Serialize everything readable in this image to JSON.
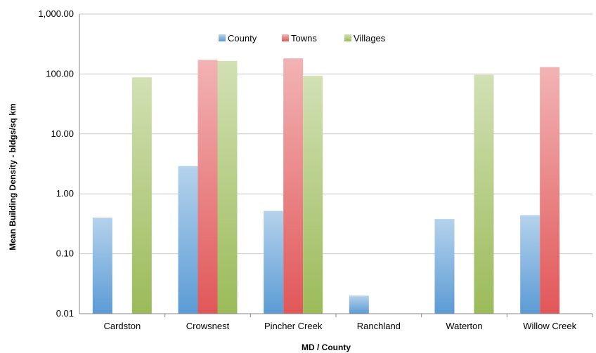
{
  "chart_data": {
    "type": "bar",
    "title": "",
    "xlabel": "MD / County",
    "ylabel": "Mean Building Density - bldgs/sq km",
    "yscale": "log",
    "ylim": [
      0.01,
      1000
    ],
    "yticks": [
      0.01,
      0.1,
      1,
      10,
      100,
      1000
    ],
    "ytick_labels": [
      "0.01",
      "0.10",
      "1.00",
      "10.00",
      "100.00",
      "1,000.00"
    ],
    "grid": "horizontal",
    "legend_position": "top-center",
    "categories": [
      "Cardston",
      "Crowsnest",
      "Pincher Creek",
      "Ranchland",
      "Waterton",
      "Willow Creek"
    ],
    "series": [
      {
        "name": "County",
        "color": "#5b9bd5",
        "values": [
          0.4,
          2.9,
          0.52,
          0.02,
          0.38,
          0.44
        ]
      },
      {
        "name": "Towns",
        "color": "#e15759",
        "values": [
          null,
          172,
          182,
          null,
          null,
          130
        ]
      },
      {
        "name": "Villages",
        "color": "#9bbb59",
        "values": [
          88,
          165,
          93,
          null,
          97,
          null
        ]
      }
    ]
  }
}
